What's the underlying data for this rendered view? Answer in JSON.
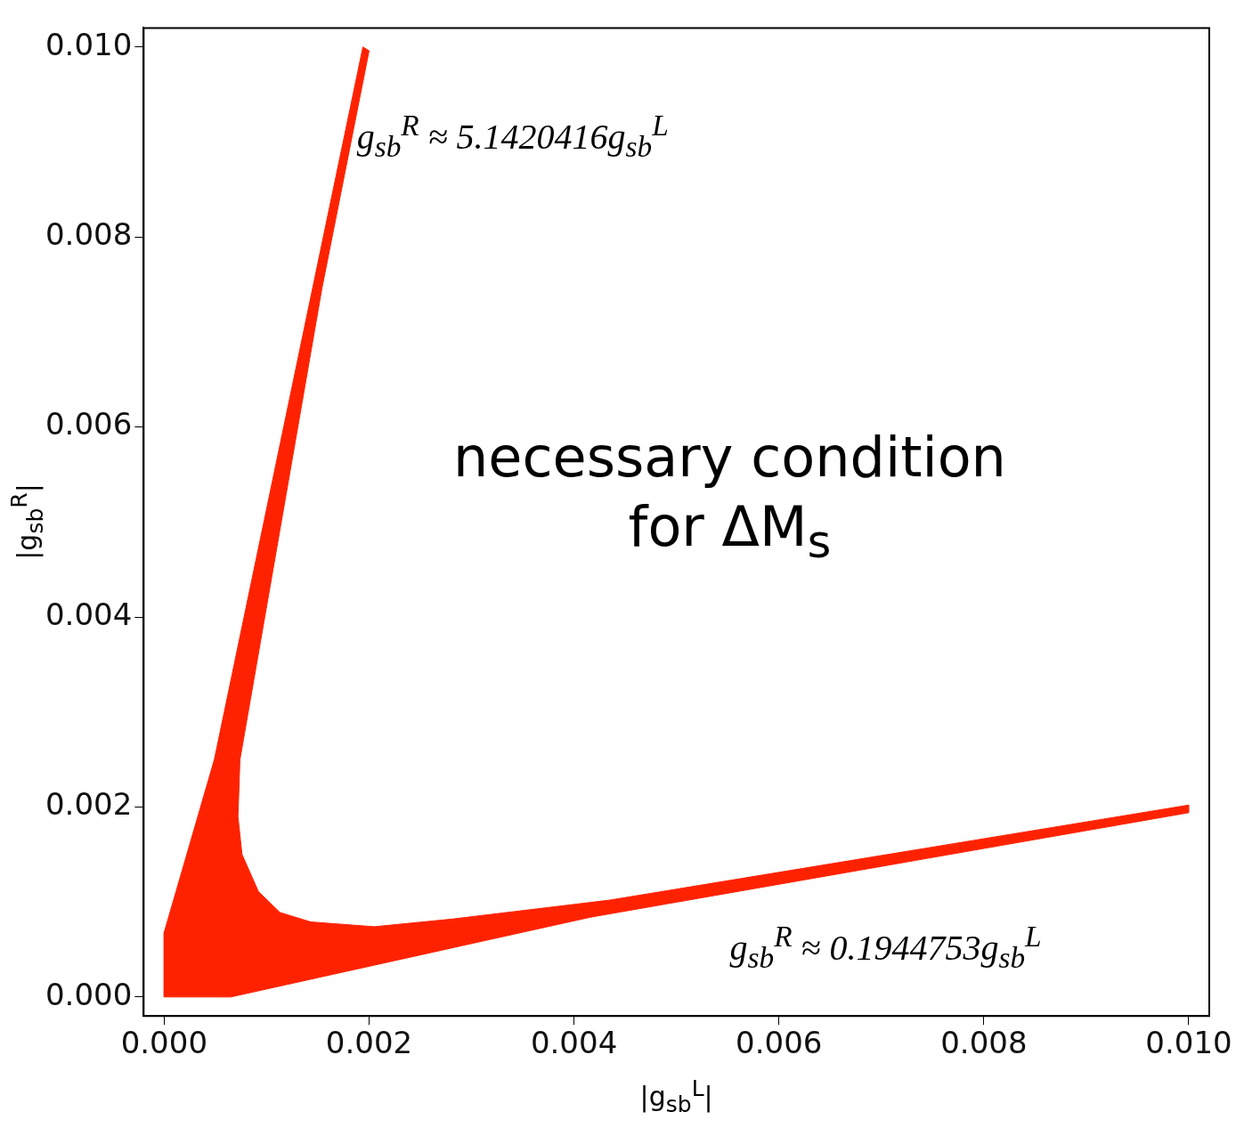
{
  "chart_data": {
    "type": "area",
    "xlabel": "|g$_{sb}$$^{L}$|",
    "ylabel": "|g$_{sb}$$^{R}$|",
    "xlim": [
      -0.0002,
      0.0102
    ],
    "ylim": [
      -0.0002,
      0.0102
    ],
    "xticks": [
      {
        "value": 0,
        "label": "0.000"
      },
      {
        "value": 0.002,
        "label": "0.002"
      },
      {
        "value": 0.004,
        "label": "0.004"
      },
      {
        "value": 0.006,
        "label": "0.006"
      },
      {
        "value": 0.008,
        "label": "0.008"
      },
      {
        "value": 0.01,
        "label": "0.010"
      }
    ],
    "yticks": [
      {
        "value": 0,
        "label": "0.000"
      },
      {
        "value": 0.002,
        "label": "0.002"
      },
      {
        "value": 0.004,
        "label": "0.004"
      },
      {
        "value": 0.006,
        "label": "0.006"
      },
      {
        "value": 0.008,
        "label": "0.008"
      },
      {
        "value": 0.01,
        "label": "0.010"
      }
    ],
    "series": [
      {
        "color": "#ff2200",
        "x": [
          0,
          0.00065,
          0.00416,
          0.01,
          0.01,
          0.00435,
          0.00281,
          0.00205,
          0.00143,
          0.00113,
          0.00092,
          0.00076,
          0.00072,
          0.00074,
          0.00154,
          0.002,
          0.00194,
          0.00049,
          0,
          0
        ],
        "values": [
          0,
          0,
          0.00084,
          0.00194,
          0.00202,
          0.00102,
          0.00082,
          0.00074,
          0.00079,
          0.00089,
          0.00111,
          0.0015,
          0.0019,
          0.0025,
          0.00746,
          0.00996,
          0.01,
          0.0025,
          0.00068,
          0
        ]
      }
    ],
    "annotations": [
      "g$_{sb}$$^{R}$ ≈ 5.1420416g$_{sb}$$^{L}$",
      "g$_{sb}$$^{R}$ ≈ 0.1944753g$_{sb}$$^{L}$",
      "necessary condition for ΔM$_{s}$"
    ]
  }
}
